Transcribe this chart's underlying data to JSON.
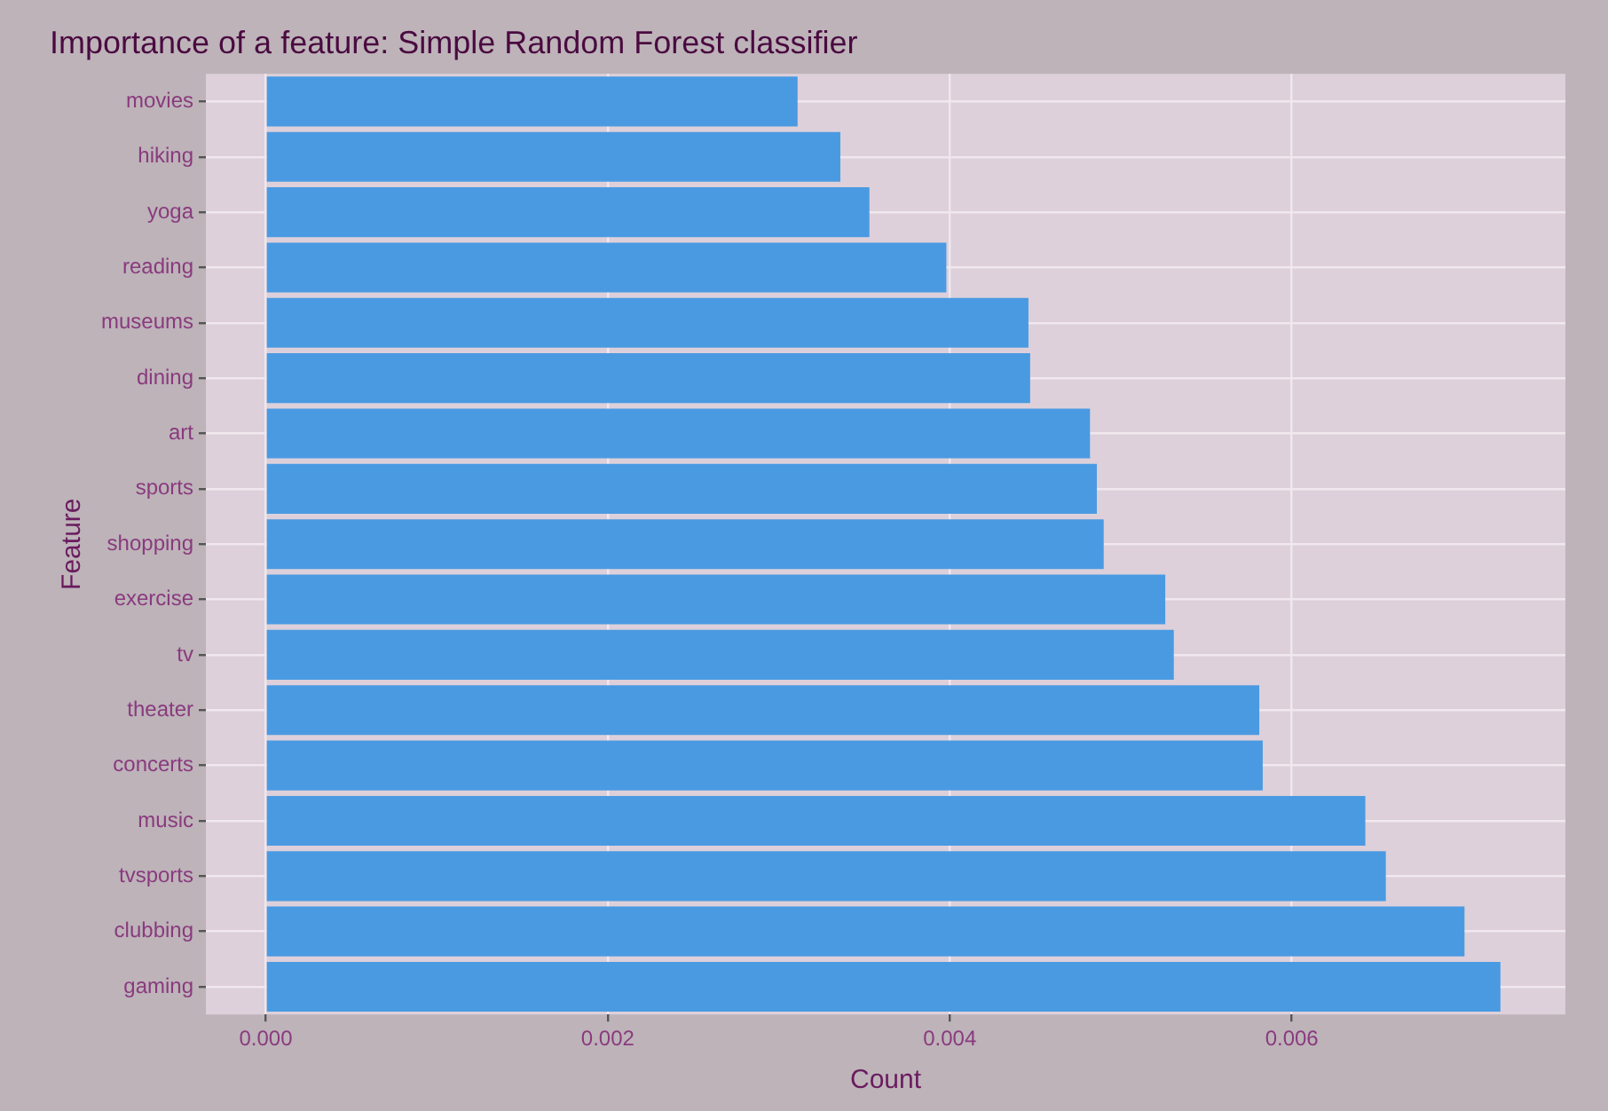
{
  "chart_data": {
    "type": "bar",
    "orientation": "horizontal",
    "title": "Importance of a feature: Simple Random Forest classifier",
    "xlabel": "Count",
    "ylabel": "Feature",
    "categories": [
      "movies",
      "hiking",
      "yoga",
      "reading",
      "museums",
      "dining",
      "art",
      "sports",
      "shopping",
      "exercise",
      "tv",
      "theater",
      "concerts",
      "music",
      "tvsports",
      "clubbing",
      "gaming"
    ],
    "values": [
      0.00311,
      0.00336,
      0.00353,
      0.00398,
      0.00446,
      0.00447,
      0.00482,
      0.00486,
      0.0049,
      0.00526,
      0.00531,
      0.00581,
      0.00583,
      0.00643,
      0.00655,
      0.00701,
      0.00722
    ],
    "color": "#4a9ae2",
    "xlim": [
      -0.00035,
      0.0076
    ],
    "xticks": [
      {
        "value": 0,
        "label": "0.000"
      },
      {
        "value": 0.002,
        "label": "0.002"
      },
      {
        "value": 0.004,
        "label": "0.004"
      },
      {
        "value": 0.006,
        "label": "0.006"
      }
    ],
    "grid": true,
    "legend": false
  }
}
